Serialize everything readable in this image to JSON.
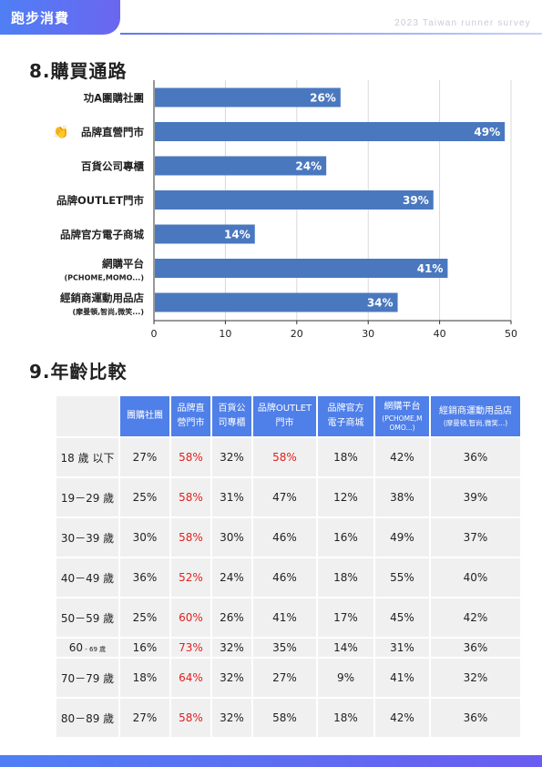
{
  "header": {
    "tab_label": "跑步消費",
    "survey_label": "2023 Taiwan runner survey"
  },
  "section8": {
    "title": "8.購買通路"
  },
  "section9": {
    "title": "9.年齡比較"
  },
  "chart_data": {
    "type": "bar",
    "orientation": "horizontal",
    "title": "8.購買通路",
    "categories": [
      {
        "label": "功A團購社團",
        "sublabel": ""
      },
      {
        "label": "品牌直營門市",
        "sublabel": "",
        "icon": "clapping-hands-icon"
      },
      {
        "label": "百貨公司專櫃",
        "sublabel": ""
      },
      {
        "label": "品牌OUTLET門市",
        "sublabel": ""
      },
      {
        "label": "品牌官方電子商城",
        "sublabel": ""
      },
      {
        "label": "網購平台",
        "sublabel": "(PCHOME,MOMO...)"
      },
      {
        "label": "經銷商運動用品店",
        "sublabel": "(摩曼頓,智尚,微笑...)"
      }
    ],
    "values": [
      26,
      49,
      24,
      39,
      14,
      41,
      34
    ],
    "value_labels": [
      "26%",
      "49%",
      "24%",
      "39%",
      "14%",
      "41%",
      "34%"
    ],
    "xlim": [
      0,
      50
    ],
    "xticks": [
      "0",
      "10",
      "20",
      "30",
      "40",
      "50"
    ],
    "bar_color": "#4a78bf",
    "grid": true
  },
  "age_table": {
    "columns": [
      {
        "line1": "團購社團",
        "line2": "",
        "sub": ""
      },
      {
        "line1": "品牌直",
        "line2": "營門市",
        "sub": ""
      },
      {
        "line1": "百貨公",
        "line2": "司專櫃",
        "sub": ""
      },
      {
        "line1": "品牌OUTLET",
        "line2": "門市",
        "sub": ""
      },
      {
        "line1": "品牌官方",
        "line2": "電子商城",
        "sub": ""
      },
      {
        "line1": "網購平台",
        "line2": "",
        "sub": "(PCHOME,M OMO...)"
      },
      {
        "line1": "經銷商運動用品店",
        "line2": "",
        "sub": "(摩曼頓,智尚,微笑...)"
      }
    ],
    "rows": [
      {
        "age": "18 歲 以下",
        "suffix": "",
        "values": [
          "27%",
          "58%",
          "32%",
          "58%",
          "18%",
          "42%",
          "36%"
        ],
        "red": [
          1,
          3
        ]
      },
      {
        "age": "19－29 歲",
        "suffix": "",
        "values": [
          "25%",
          "58%",
          "31%",
          "47%",
          "12%",
          "38%",
          "39%"
        ],
        "red": [
          1
        ]
      },
      {
        "age": "30－39 歲",
        "suffix": "",
        "values": [
          "30%",
          "58%",
          "30%",
          "46%",
          "16%",
          "49%",
          "37%"
        ],
        "red": [
          1
        ]
      },
      {
        "age": "40－49 歲",
        "suffix": "",
        "values": [
          "36%",
          "52%",
          "24%",
          "46%",
          "18%",
          "55%",
          "40%"
        ],
        "red": [
          1
        ]
      },
      {
        "age": "50－59 歲",
        "suffix": "",
        "values": [
          "25%",
          "60%",
          "26%",
          "41%",
          "17%",
          "45%",
          "42%"
        ],
        "red": [
          1
        ]
      },
      {
        "age": "60",
        "suffix": " - 69 歲",
        "values": [
          "16%",
          "73%",
          "32%",
          "35%",
          "14%",
          "31%",
          "36%"
        ],
        "red": [
          1
        ]
      },
      {
        "age": "70－79 歲",
        "suffix": "",
        "values": [
          "18%",
          "64%",
          "32%",
          "27%",
          "9%",
          "41%",
          "32%"
        ],
        "red": [
          1
        ]
      },
      {
        "age": "80－89 歲",
        "suffix": "",
        "values": [
          "27%",
          "58%",
          "32%",
          "58%",
          "18%",
          "42%",
          "36%"
        ],
        "red": [
          1
        ]
      }
    ],
    "highlight_color": "#e02020"
  }
}
